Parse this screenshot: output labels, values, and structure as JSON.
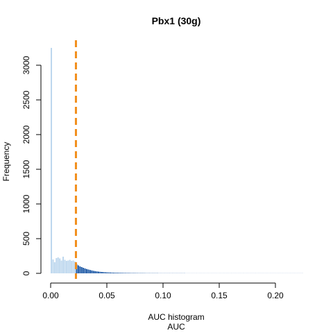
{
  "chart_data": {
    "type": "bar",
    "title": "Pbx1 (30g)",
    "xlabel": "AUC histogram",
    "xlabel_sub": "AUC",
    "ylabel": "Frequency",
    "xlim": [
      0,
      0.226
    ],
    "ylim": [
      0,
      3300
    ],
    "x_ticks": [
      0,
      0.05,
      0.1,
      0.15,
      0.2
    ],
    "x_tick_labels": [
      "0.00",
      "0.05",
      "0.10",
      "0.15",
      "0.20"
    ],
    "y_ticks": [
      0,
      500,
      1000,
      1500,
      2000,
      2500,
      3000
    ],
    "y_tick_labels": [
      "0",
      "500",
      "1000",
      "1500",
      "2000",
      "2500",
      "3000"
    ],
    "threshold": 0.0225,
    "bin_width": 0.0015,
    "bin_start": 0,
    "values": [
      3250,
      200,
      160,
      220,
      230,
      215,
      185,
      240,
      195,
      180,
      185,
      195,
      180,
      185,
      170,
      130,
      115,
      100,
      90,
      80,
      70,
      62,
      55,
      48,
      42,
      36,
      32,
      28,
      25,
      22,
      20,
      18,
      16,
      14,
      13,
      12,
      11,
      10,
      9,
      9,
      8,
      8,
      7,
      7,
      6,
      6,
      6,
      5,
      5,
      5,
      5,
      4,
      4,
      4,
      4,
      4,
      3,
      3,
      3,
      3,
      3,
      3,
      3,
      3,
      2,
      2,
      2,
      2,
      2,
      2,
      2,
      2,
      2,
      2,
      2,
      2,
      2,
      2,
      2,
      2,
      1,
      1,
      1,
      1,
      1,
      1,
      1,
      1,
      1,
      1,
      1,
      1,
      1,
      1,
      1,
      1,
      1,
      1,
      1,
      1,
      1,
      1,
      1,
      1,
      1,
      1,
      1,
      1,
      1,
      1,
      1,
      1,
      1,
      1,
      1,
      1,
      1,
      1,
      1,
      1,
      1,
      1,
      1,
      1,
      1,
      1,
      1,
      1,
      1,
      1,
      1,
      1,
      1,
      1,
      1,
      1,
      1,
      1,
      1,
      1,
      1,
      1,
      1,
      1,
      1,
      1,
      1,
      1,
      1,
      1
    ],
    "colors": {
      "below_threshold": "#bdd7ee",
      "above_threshold": "#1f5aa6",
      "threshold_line": "#f28e1c",
      "axis": "#000000"
    }
  }
}
